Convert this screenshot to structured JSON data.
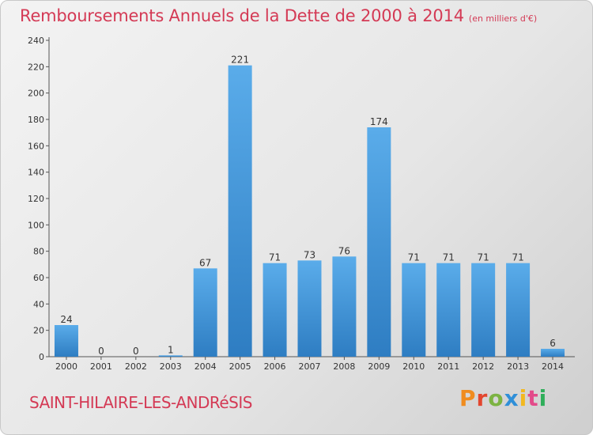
{
  "header": {
    "title": "Remboursements Annuels de la Dette de 2000 à 2014",
    "unit": "(en milliers d'€)"
  },
  "footer": {
    "place": "SAINT-HILAIRE-LES-ANDRéSIS",
    "logo": "Proxiti"
  },
  "colors": {
    "bar_top": "#5aacea",
    "bar_bottom": "#2e7dc2",
    "title": "#d43a55",
    "logo_letters": [
      "#f08c1f",
      "#e3462e",
      "#7cb342",
      "#2f8fd8",
      "#f2b820",
      "#e34b8a",
      "#2fae5a"
    ]
  },
  "chart_data": {
    "type": "bar",
    "categories": [
      "2000",
      "2001",
      "2002",
      "2003",
      "2004",
      "2005",
      "2006",
      "2007",
      "2008",
      "2009",
      "2010",
      "2011",
      "2012",
      "2013",
      "2014"
    ],
    "values": [
      24,
      0,
      0,
      1,
      67,
      221,
      71,
      73,
      76,
      174,
      71,
      71,
      71,
      71,
      6
    ],
    "ylim": [
      0,
      240
    ],
    "yticks": [
      0,
      20,
      40,
      60,
      80,
      100,
      120,
      140,
      160,
      180,
      200,
      220,
      240
    ],
    "grid": false,
    "legend": "none"
  }
}
